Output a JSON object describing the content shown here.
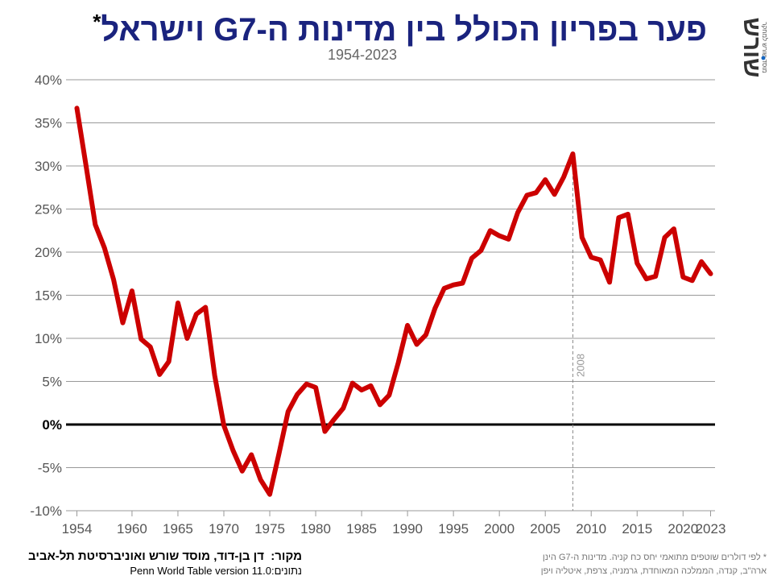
{
  "title": "פער בפריון הכולל בין מדינות ה-G7 וישראל",
  "title_mark": "*",
  "subtitle": "1954-2023",
  "logo": {
    "main_text": "שורש",
    "sub_text": "מוסד שורש למחקר",
    "icon": "shoresh-logo"
  },
  "source": {
    "label": "מקור:",
    "text": "דן בן-דוד, מוסד שורש ואוניברסיטת תל-אביב",
    "data_label": "נתונים:",
    "data_text": "Penn World Table version 11.0"
  },
  "note": {
    "line1": "* לפי דולרים שוטפים מתואמי יחס כח קניה. מדינות ה-G7 הינן",
    "line2": "ארה\"ב, קנדה, הממלכה המאוחדת, גרמניה, צרפת, איטליה ויפן"
  },
  "colors": {
    "title": "#1a237e",
    "line": "#cc0000",
    "grid": "#999999",
    "zero": "#000000"
  },
  "chart_data": {
    "type": "line",
    "title": "פער בפריון הכולל בין מדינות ה-G7 וישראל",
    "subtitle": "1954-2023",
    "xlabel": "",
    "ylabel": "",
    "xlim": [
      1953,
      2024
    ],
    "ylim": [
      -10,
      40
    ],
    "x_ticks": [
      1954,
      1960,
      1965,
      1970,
      1975,
      1980,
      1985,
      1990,
      1995,
      2000,
      2005,
      2010,
      2015,
      2020,
      2023
    ],
    "y_ticks": [
      -10,
      -5,
      0,
      5,
      10,
      15,
      20,
      25,
      30,
      35,
      40
    ],
    "y_tick_labels": [
      "-10%",
      "-5%",
      "0%",
      "5%",
      "10%",
      "15%",
      "20%",
      "25%",
      "30%",
      "35%",
      "40%"
    ],
    "grid": true,
    "annotations": [
      {
        "x": 2008,
        "label": "2008",
        "style": "dashed-vertical"
      }
    ],
    "series": [
      {
        "name": "",
        "x": [
          1954,
          1955,
          1956,
          1957,
          1958,
          1959,
          1960,
          1961,
          1962,
          1963,
          1964,
          1965,
          1966,
          1967,
          1968,
          1969,
          1970,
          1971,
          1972,
          1973,
          1974,
          1975,
          1976,
          1977,
          1978,
          1979,
          1980,
          1981,
          1982,
          1983,
          1984,
          1985,
          1986,
          1987,
          1988,
          1989,
          1990,
          1991,
          1992,
          1993,
          1994,
          1995,
          1996,
          1997,
          1998,
          1999,
          2000,
          2001,
          2002,
          2003,
          2004,
          2005,
          2006,
          2007,
          2008,
          2009,
          2010,
          2011,
          2012,
          2013,
          2014,
          2015,
          2016,
          2017,
          2018,
          2019,
          2020,
          2021,
          2022,
          2023
        ],
        "values": [
          36.7,
          30.0,
          23.2,
          20.5,
          16.8,
          11.8,
          15.5,
          9.9,
          9.0,
          5.8,
          7.3,
          14.1,
          10.0,
          12.8,
          13.6,
          5.7,
          -0.1,
          -3.0,
          -5.4,
          -3.5,
          -6.4,
          -8.1,
          -3.4,
          1.5,
          3.5,
          4.7,
          4.3,
          -0.8,
          0.6,
          1.9,
          4.8,
          4.0,
          4.5,
          2.3,
          3.4,
          7.2,
          11.5,
          9.3,
          10.4,
          13.5,
          15.8,
          16.2,
          16.4,
          19.3,
          20.2,
          22.5,
          21.9,
          21.5,
          24.6,
          26.6,
          26.9,
          28.4,
          26.7,
          28.7,
          31.4,
          21.7,
          19.4,
          19.1,
          16.5,
          24.0,
          24.4,
          18.7,
          16.9,
          17.2,
          21.7,
          22.7,
          17.1,
          16.7,
          18.9,
          17.5
        ]
      }
    ]
  }
}
